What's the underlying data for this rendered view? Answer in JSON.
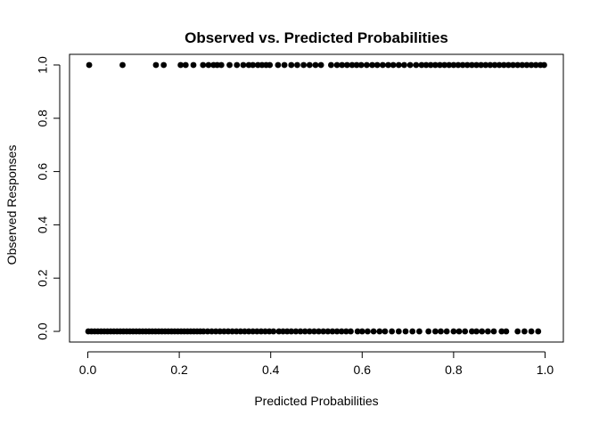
{
  "chart_data": {
    "type": "scatter",
    "title": "Observed vs. Predicted Probabilities",
    "xlabel": "Predicted Probabilities",
    "ylabel": "Observed Responses",
    "xlim": [
      -0.04,
      1.04
    ],
    "ylim": [
      -0.04,
      1.04
    ],
    "x_ticks": [
      0.0,
      0.2,
      0.4,
      0.6,
      0.8,
      1.0
    ],
    "x_tick_labels": [
      "0.0",
      "0.2",
      "0.4",
      "0.6",
      "0.8",
      "1.0"
    ],
    "y_ticks": [
      0.0,
      0.2,
      0.4,
      0.6,
      0.8,
      1.0
    ],
    "y_tick_labels": [
      "0.0",
      "0.2",
      "0.4",
      "0.6",
      "0.8",
      "1.0"
    ],
    "grid": false,
    "legend": "none",
    "marker_color": "#000000",
    "series": [
      {
        "values": [
          {
            "x": 0.003,
            "y": 1
          },
          {
            "x": 0.076,
            "y": 1
          },
          {
            "x": 0.149,
            "y": 1
          },
          {
            "x": 0.166,
            "y": 1
          },
          {
            "x": 0.203,
            "y": 1
          },
          {
            "x": 0.214,
            "y": 1
          },
          {
            "x": 0.231,
            "y": 1
          },
          {
            "x": 0.252,
            "y": 1
          },
          {
            "x": 0.264,
            "y": 1
          },
          {
            "x": 0.275,
            "y": 1
          },
          {
            "x": 0.283,
            "y": 1
          },
          {
            "x": 0.292,
            "y": 1
          },
          {
            "x": 0.31,
            "y": 1
          },
          {
            "x": 0.326,
            "y": 1
          },
          {
            "x": 0.34,
            "y": 1
          },
          {
            "x": 0.352,
            "y": 1
          },
          {
            "x": 0.361,
            "y": 1
          },
          {
            "x": 0.372,
            "y": 1
          },
          {
            "x": 0.381,
            "y": 1
          },
          {
            "x": 0.39,
            "y": 1
          },
          {
            "x": 0.398,
            "y": 1
          },
          {
            "x": 0.416,
            "y": 1
          },
          {
            "x": 0.43,
            "y": 1
          },
          {
            "x": 0.445,
            "y": 1
          },
          {
            "x": 0.458,
            "y": 1
          },
          {
            "x": 0.472,
            "y": 1
          },
          {
            "x": 0.485,
            "y": 1
          },
          {
            "x": 0.498,
            "y": 1
          },
          {
            "x": 0.51,
            "y": 1
          },
          {
            "x": 0.532,
            "y": 1
          },
          {
            "x": 0.545,
            "y": 1
          },
          {
            "x": 0.556,
            "y": 1
          },
          {
            "x": 0.567,
            "y": 1
          },
          {
            "x": 0.578,
            "y": 1
          },
          {
            "x": 0.588,
            "y": 1
          },
          {
            "x": 0.598,
            "y": 1
          },
          {
            "x": 0.61,
            "y": 1
          },
          {
            "x": 0.622,
            "y": 1
          },
          {
            "x": 0.633,
            "y": 1
          },
          {
            "x": 0.645,
            "y": 1
          },
          {
            "x": 0.657,
            "y": 1
          },
          {
            "x": 0.668,
            "y": 1
          },
          {
            "x": 0.68,
            "y": 1
          },
          {
            "x": 0.692,
            "y": 1
          },
          {
            "x": 0.705,
            "y": 1
          },
          {
            "x": 0.718,
            "y": 1
          },
          {
            "x": 0.73,
            "y": 1
          },
          {
            "x": 0.74,
            "y": 1
          },
          {
            "x": 0.75,
            "y": 1
          },
          {
            "x": 0.76,
            "y": 1
          },
          {
            "x": 0.77,
            "y": 1
          },
          {
            "x": 0.78,
            "y": 1
          },
          {
            "x": 0.79,
            "y": 1
          },
          {
            "x": 0.8,
            "y": 1
          },
          {
            "x": 0.81,
            "y": 1
          },
          {
            "x": 0.82,
            "y": 1
          },
          {
            "x": 0.83,
            "y": 1
          },
          {
            "x": 0.84,
            "y": 1
          },
          {
            "x": 0.85,
            "y": 1
          },
          {
            "x": 0.86,
            "y": 1
          },
          {
            "x": 0.87,
            "y": 1
          },
          {
            "x": 0.88,
            "y": 1
          },
          {
            "x": 0.89,
            "y": 1
          },
          {
            "x": 0.9,
            "y": 1
          },
          {
            "x": 0.91,
            "y": 1
          },
          {
            "x": 0.92,
            "y": 1
          },
          {
            "x": 0.93,
            "y": 1
          },
          {
            "x": 0.94,
            "y": 1
          },
          {
            "x": 0.95,
            "y": 1
          },
          {
            "x": 0.96,
            "y": 1
          },
          {
            "x": 0.97,
            "y": 1
          },
          {
            "x": 0.98,
            "y": 1
          },
          {
            "x": 0.99,
            "y": 1
          },
          {
            "x": 0.998,
            "y": 1
          },
          {
            "x": 0.001,
            "y": 0
          },
          {
            "x": 0.008,
            "y": 0
          },
          {
            "x": 0.015,
            "y": 0
          },
          {
            "x": 0.022,
            "y": 0
          },
          {
            "x": 0.029,
            "y": 0
          },
          {
            "x": 0.036,
            "y": 0
          },
          {
            "x": 0.043,
            "y": 0
          },
          {
            "x": 0.05,
            "y": 0
          },
          {
            "x": 0.057,
            "y": 0
          },
          {
            "x": 0.064,
            "y": 0
          },
          {
            "x": 0.071,
            "y": 0
          },
          {
            "x": 0.078,
            "y": 0
          },
          {
            "x": 0.085,
            "y": 0
          },
          {
            "x": 0.092,
            "y": 0
          },
          {
            "x": 0.099,
            "y": 0
          },
          {
            "x": 0.106,
            "y": 0
          },
          {
            "x": 0.113,
            "y": 0
          },
          {
            "x": 0.12,
            "y": 0
          },
          {
            "x": 0.127,
            "y": 0
          },
          {
            "x": 0.134,
            "y": 0
          },
          {
            "x": 0.141,
            "y": 0
          },
          {
            "x": 0.148,
            "y": 0
          },
          {
            "x": 0.155,
            "y": 0
          },
          {
            "x": 0.162,
            "y": 0
          },
          {
            "x": 0.169,
            "y": 0
          },
          {
            "x": 0.176,
            "y": 0
          },
          {
            "x": 0.183,
            "y": 0
          },
          {
            "x": 0.19,
            "y": 0
          },
          {
            "x": 0.197,
            "y": 0
          },
          {
            "x": 0.204,
            "y": 0
          },
          {
            "x": 0.211,
            "y": 0
          },
          {
            "x": 0.218,
            "y": 0
          },
          {
            "x": 0.225,
            "y": 0
          },
          {
            "x": 0.232,
            "y": 0
          },
          {
            "x": 0.239,
            "y": 0
          },
          {
            "x": 0.246,
            "y": 0
          },
          {
            "x": 0.253,
            "y": 0
          },
          {
            "x": 0.262,
            "y": 0
          },
          {
            "x": 0.271,
            "y": 0
          },
          {
            "x": 0.28,
            "y": 0
          },
          {
            "x": 0.289,
            "y": 0
          },
          {
            "x": 0.298,
            "y": 0
          },
          {
            "x": 0.307,
            "y": 0
          },
          {
            "x": 0.316,
            "y": 0
          },
          {
            "x": 0.325,
            "y": 0
          },
          {
            "x": 0.334,
            "y": 0
          },
          {
            "x": 0.343,
            "y": 0
          },
          {
            "x": 0.352,
            "y": 0
          },
          {
            "x": 0.361,
            "y": 0
          },
          {
            "x": 0.37,
            "y": 0
          },
          {
            "x": 0.379,
            "y": 0
          },
          {
            "x": 0.388,
            "y": 0
          },
          {
            "x": 0.397,
            "y": 0
          },
          {
            "x": 0.406,
            "y": 0
          },
          {
            "x": 0.418,
            "y": 0
          },
          {
            "x": 0.427,
            "y": 0
          },
          {
            "x": 0.436,
            "y": 0
          },
          {
            "x": 0.445,
            "y": 0
          },
          {
            "x": 0.455,
            "y": 0
          },
          {
            "x": 0.465,
            "y": 0
          },
          {
            "x": 0.475,
            "y": 0
          },
          {
            "x": 0.485,
            "y": 0
          },
          {
            "x": 0.495,
            "y": 0
          },
          {
            "x": 0.505,
            "y": 0
          },
          {
            "x": 0.515,
            "y": 0
          },
          {
            "x": 0.525,
            "y": 0
          },
          {
            "x": 0.535,
            "y": 0
          },
          {
            "x": 0.545,
            "y": 0
          },
          {
            "x": 0.555,
            "y": 0
          },
          {
            "x": 0.565,
            "y": 0
          },
          {
            "x": 0.575,
            "y": 0
          },
          {
            "x": 0.59,
            "y": 0
          },
          {
            "x": 0.6,
            "y": 0
          },
          {
            "x": 0.612,
            "y": 0
          },
          {
            "x": 0.625,
            "y": 0
          },
          {
            "x": 0.638,
            "y": 0
          },
          {
            "x": 0.65,
            "y": 0
          },
          {
            "x": 0.665,
            "y": 0
          },
          {
            "x": 0.68,
            "y": 0
          },
          {
            "x": 0.695,
            "y": 0
          },
          {
            "x": 0.71,
            "y": 0
          },
          {
            "x": 0.725,
            "y": 0
          },
          {
            "x": 0.745,
            "y": 0
          },
          {
            "x": 0.76,
            "y": 0
          },
          {
            "x": 0.772,
            "y": 0
          },
          {
            "x": 0.785,
            "y": 0
          },
          {
            "x": 0.8,
            "y": 0
          },
          {
            "x": 0.812,
            "y": 0
          },
          {
            "x": 0.825,
            "y": 0
          },
          {
            "x": 0.84,
            "y": 0
          },
          {
            "x": 0.85,
            "y": 0
          },
          {
            "x": 0.862,
            "y": 0
          },
          {
            "x": 0.875,
            "y": 0
          },
          {
            "x": 0.888,
            "y": 0
          },
          {
            "x": 0.905,
            "y": 0
          },
          {
            "x": 0.915,
            "y": 0
          },
          {
            "x": 0.94,
            "y": 0
          },
          {
            "x": 0.955,
            "y": 0
          },
          {
            "x": 0.97,
            "y": 0
          },
          {
            "x": 0.985,
            "y": 0
          }
        ]
      }
    ]
  }
}
